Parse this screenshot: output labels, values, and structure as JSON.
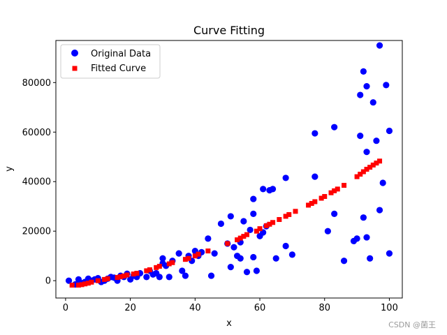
{
  "chart_data": {
    "type": "scatter",
    "title": "Curve Fitting",
    "xlabel": "x",
    "ylabel": "y",
    "xlim": [
      -3,
      104
    ],
    "ylim": [
      -7000,
      97000
    ],
    "xticks": [
      0,
      20,
      40,
      60,
      80,
      100
    ],
    "yticks": [
      0,
      20000,
      40000,
      60000,
      80000
    ],
    "grid": false,
    "legend_placement": "top-left",
    "series": [
      {
        "name": "Original Data",
        "marker": "circle",
        "color": "#0000ff",
        "x": [
          1,
          3,
          4,
          5,
          6,
          7,
          8,
          9,
          10,
          11,
          12,
          13,
          14,
          15,
          16,
          17,
          18,
          19,
          20,
          21,
          22,
          23,
          25,
          26,
          27,
          28,
          29,
          30,
          30,
          31,
          32,
          33,
          35,
          36,
          37,
          38,
          39,
          40,
          41,
          42,
          44,
          45,
          46,
          48,
          50,
          51,
          51,
          52,
          53,
          54,
          54,
          55,
          56,
          57,
          58,
          58,
          58,
          59,
          60,
          61,
          61,
          62,
          63,
          64,
          65,
          68,
          68,
          70,
          77,
          77,
          81,
          83,
          83,
          86,
          89,
          90,
          91,
          91,
          92,
          92,
          93,
          93,
          93,
          94,
          95,
          96,
          97,
          97,
          98,
          99,
          100,
          100
        ],
        "y": [
          0,
          -1500,
          500,
          -1000,
          -500,
          800,
          0,
          500,
          1000,
          -500,
          0,
          800,
          1500,
          1200,
          0,
          2000,
          1500,
          2800,
          500,
          2000,
          1500,
          3000,
          1500,
          4000,
          2500,
          3000,
          1500,
          9000,
          7000,
          6000,
          1500,
          8000,
          11000,
          4000,
          2000,
          10000,
          8000,
          12000,
          10000,
          11500,
          17000,
          2000,
          11000,
          23000,
          15000,
          5500,
          26000,
          13500,
          10000,
          9000,
          15500,
          24000,
          3500,
          20500,
          9500,
          27000,
          33000,
          4000,
          18000,
          37000,
          19500,
          22000,
          36500,
          37000,
          9000,
          41500,
          14000,
          10500,
          59500,
          42000,
          20000,
          62000,
          27000,
          8000,
          16000,
          17000,
          75000,
          58500,
          84500,
          25500,
          78500,
          52000,
          17500,
          9000,
          72000,
          56500,
          95000,
          28500,
          39500,
          79000,
          60500,
          11000
        ]
      },
      {
        "name": "Fitted Curve",
        "marker": "square",
        "color": "#ff0000",
        "x": [
          2,
          4,
          5,
          6,
          7,
          8,
          10,
          12,
          13,
          16,
          17,
          18,
          19,
          21,
          22,
          25,
          26,
          28,
          29,
          32,
          33,
          37,
          38,
          40,
          41,
          44,
          50,
          53,
          54,
          55,
          56,
          59,
          60,
          62,
          63,
          64,
          66,
          68,
          69,
          71,
          75,
          76,
          77,
          79,
          80,
          82,
          83,
          84,
          86,
          90,
          91,
          92,
          93,
          94,
          95,
          96,
          97
        ],
        "y": [
          -1800,
          -1800,
          -1600,
          -1300,
          -1000,
          -600,
          0,
          500,
          800,
          1300,
          1600,
          1900,
          2300,
          2700,
          3000,
          4000,
          4400,
          5300,
          5800,
          6800,
          7300,
          8600,
          9000,
          10000,
          10700,
          12000,
          15000,
          16500,
          17200,
          17900,
          18600,
          20000,
          21000,
          22200,
          22800,
          23500,
          24700,
          26000,
          26700,
          28000,
          30500,
          31200,
          31900,
          33300,
          34000,
          35500,
          36300,
          37000,
          38500,
          42000,
          43000,
          44000,
          45000,
          45800,
          46700,
          47500,
          48300
        ]
      }
    ],
    "legend": [
      "Original Data",
      "Fitted Curve"
    ]
  },
  "watermark": "CSDN @菌王"
}
